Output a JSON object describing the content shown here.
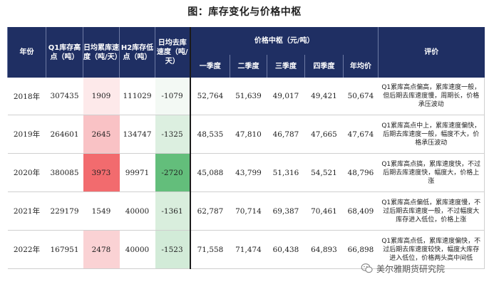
{
  "title": "图：库存变化与价格中枢",
  "table": {
    "headers": {
      "year": "年份",
      "q1_peak": "Q1库存高点（吨）",
      "accum_speed": "日均累库速度（吨/天）",
      "h2_low": "H2库存低点（吨）",
      "destock_speed": "日均去库速度（吨/天）",
      "price_group": "价格中枢（元/吨）",
      "q1": "一季度",
      "q2": "二季度",
      "q3": "三季度",
      "q4": "四季度",
      "annual": "年均价",
      "comment": "评价"
    },
    "rows": [
      {
        "year": "2018年",
        "q1_peak": "307435",
        "accum_speed": "1909",
        "h2_low": "111029",
        "destock_speed": "-1079",
        "q1": "52,764",
        "q2": "51,639",
        "q3": "49,017",
        "q4": "49,421",
        "annual": "50,674",
        "comment": "Q1累库高点偏高，累库速度一般，但后期去库速度慢，周期长，价格承压波动",
        "accum_color": "#fde9ea",
        "destock_color": "#f3f9f4"
      },
      {
        "year": "2019年",
        "q1_peak": "264601",
        "accum_speed": "2645",
        "h2_low": "134747",
        "destock_speed": "-1325",
        "q1": "48,535",
        "q2": "47,810",
        "q3": "46,787",
        "q4": "47,665",
        "annual": "47,674",
        "comment": "Q1累库高点中上，累库速度偏快，后期去库速度一般，幅度不大，价格承压波动",
        "accum_color": "#f9c2c5",
        "destock_color": "#dcefe0"
      },
      {
        "year": "2020年",
        "q1_peak": "380085",
        "accum_speed": "3973",
        "h2_low": "99971",
        "destock_speed": "-2720",
        "q1": "45,088",
        "q2": "43,799",
        "q3": "51,316",
        "q4": "54,521",
        "annual": "48,796",
        "comment": "Q1累库高点搞，累库速度快，不过后期去库速度快，幅度大，价格上涨",
        "accum_color": "#f26b6e",
        "destock_color": "#63be7b"
      },
      {
        "year": "2021年",
        "q1_peak": "229179",
        "accum_speed": "1549",
        "h2_low": "40000",
        "destock_speed": "-1361",
        "q1": "62,787",
        "q2": "70,714",
        "q3": "69,387",
        "q4": "70,461",
        "annual": "68,409",
        "comment": "Q1累库高点偏低，累库速度慢，不过后期去库速度一般，不过幅度大库存进入低位，价格上涨",
        "accum_color": "#ffffff",
        "destock_color": "#d9eedd"
      },
      {
        "year": "2022年",
        "q1_peak": "167951",
        "accum_speed": "2478",
        "h2_low": "40000",
        "destock_speed": "-1523",
        "q1": "71,558",
        "q2": "71,474",
        "q3": "60,438",
        "q4": "64,893",
        "annual": "66,898",
        "comment": "Q1累库高点低，累库速度偏快，不过后期去库速度较快，幅度大库存进入低位，价格两头高中间低",
        "accum_color": "#fad2d4",
        "destock_color": "#d2ebd8"
      }
    ]
  },
  "watermark": {
    "text": "美尔雅期货研究院",
    "icon": "wechat-icon"
  }
}
